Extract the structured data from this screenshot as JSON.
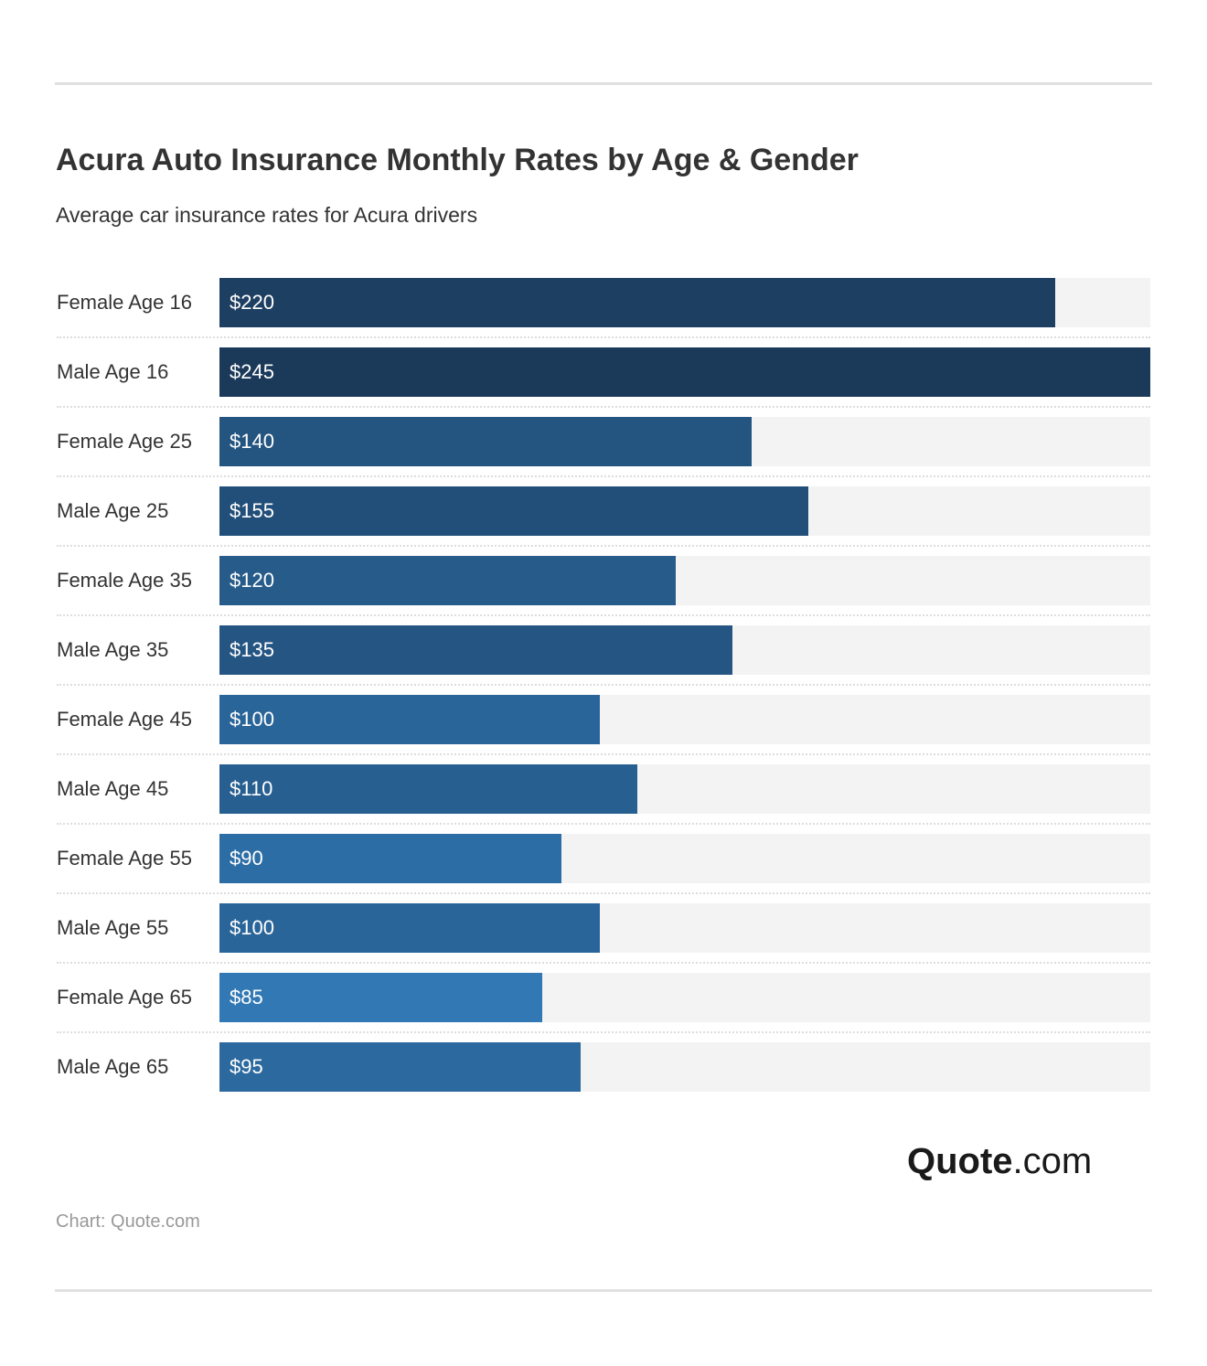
{
  "chart_data": {
    "type": "bar",
    "orientation": "horizontal",
    "title": "Acura Auto Insurance Monthly Rates by Age & Gender",
    "subtitle": "Average car insurance rates for Acura drivers",
    "categories": [
      "Female Age 16",
      "Male Age 16",
      "Female Age 25",
      "Male Age 25",
      "Female Age 35",
      "Male Age 35",
      "Female Age 45",
      "Male Age 45",
      "Female Age 55",
      "Male Age 55",
      "Female Age 65",
      "Male Age 65"
    ],
    "values": [
      220,
      245,
      140,
      155,
      120,
      135,
      100,
      110,
      90,
      100,
      85,
      95
    ],
    "data_labels": [
      "$220",
      "$245",
      "$140",
      "$155",
      "$120",
      "$135",
      "$100",
      "$110",
      "$90",
      "$100",
      "$85",
      "$95"
    ],
    "xlim": [
      0,
      245
    ],
    "grid": false,
    "colors": {
      "high": "#1b3a5a",
      "low": "#3178b5",
      "track": "#f3f3f3"
    }
  },
  "logo": {
    "bold": "Quote",
    "rest": ".com"
  },
  "source": "Chart: Quote.com"
}
